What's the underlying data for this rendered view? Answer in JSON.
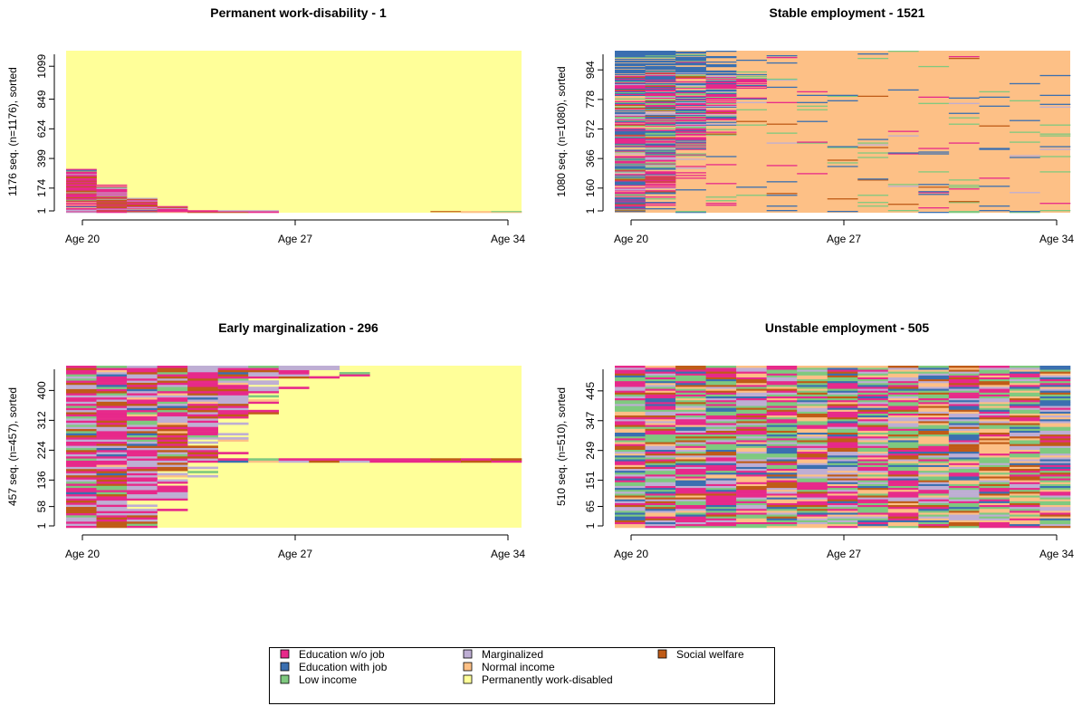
{
  "states": [
    {
      "key": "EDU",
      "label": "Education w/o job",
      "color": "#e7298a"
    },
    {
      "key": "EDJ",
      "label": "Education with job",
      "color": "#3a6fb0"
    },
    {
      "key": "LOW",
      "label": "Low income",
      "color": "#7fc97f"
    },
    {
      "key": "MAR",
      "label": "Marginalized",
      "color": "#beaed4"
    },
    {
      "key": "NOR",
      "label": "Normal income",
      "color": "#fdc086"
    },
    {
      "key": "PWD",
      "label": "Permanently work-disabled",
      "color": "#ffff99"
    },
    {
      "key": "SOC",
      "label": "Social welfare",
      "color": "#bf5b17"
    }
  ],
  "chart_data": [
    {
      "type": "heatmap",
      "id": "perm",
      "title": "Permanent work-disability -  1",
      "ylabel": "1176 seq. (n=1176), sorted",
      "n": 1176,
      "yticks": [
        1,
        174,
        399,
        624,
        849,
        1099
      ],
      "xticks": [
        "Age 20",
        "Age 27",
        "Age 34"
      ],
      "xrange": [
        20,
        34
      ],
      "dominant": "PWD"
    },
    {
      "type": "heatmap",
      "id": "stable",
      "title": "Stable employment -  1521",
      "ylabel": "1080 seq. (n=1080), sorted",
      "n": 1080,
      "yticks": [
        1,
        160,
        366,
        572,
        778,
        984
      ],
      "xticks": [
        "Age 20",
        "Age 27",
        "Age 34"
      ],
      "xrange": [
        20,
        34
      ],
      "dominant": "NOR"
    },
    {
      "type": "heatmap",
      "id": "early",
      "title": "Early marginalization -  296",
      "ylabel": "457 seq. (n=457), sorted",
      "n": 457,
      "yticks": [
        1,
        58,
        136,
        224,
        312,
        400
      ],
      "xticks": [
        "Age 20",
        "Age 27",
        "Age 34"
      ],
      "xrange": [
        20,
        34
      ],
      "dominant": "PWD"
    },
    {
      "type": "heatmap",
      "id": "unstable",
      "title": "Unstable employment -  505",
      "ylabel": "510 seq. (n=510), sorted",
      "n": 510,
      "yticks": [
        1,
        65,
        151,
        249,
        347,
        445
      ],
      "xticks": [
        "Age 20",
        "Age 27",
        "Age 34"
      ],
      "xrange": [
        20,
        34
      ],
      "dominant": "mixed"
    }
  ]
}
